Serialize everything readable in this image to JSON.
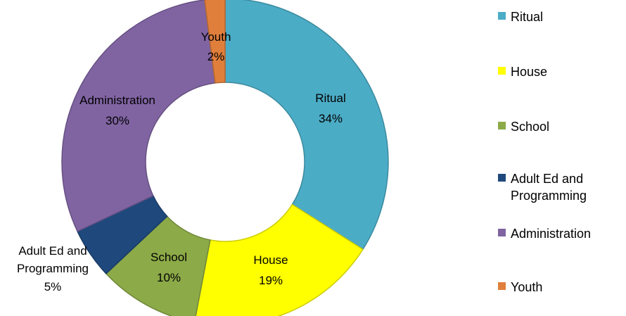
{
  "chart_data": {
    "type": "pie",
    "donut": true,
    "legend_position": "right",
    "slices": [
      {
        "name": "Ritual",
        "value": 34,
        "value_label": "34%",
        "color": "#4bacc6"
      },
      {
        "name": "House",
        "value": 19,
        "value_label": "19%",
        "color": "#ffff00"
      },
      {
        "name": "School",
        "value": 10,
        "value_label": "10%",
        "color": "#8caa48"
      },
      {
        "name": "Adult Ed and Programming",
        "value": 5,
        "value_label": "5%",
        "color": "#1f497d"
      },
      {
        "name": "Administration",
        "value": 30,
        "value_label": "30%",
        "color": "#8064a2"
      },
      {
        "name": "Youth",
        "value": 2,
        "value_label": "2%",
        "color": "#e07f3c"
      }
    ]
  }
}
